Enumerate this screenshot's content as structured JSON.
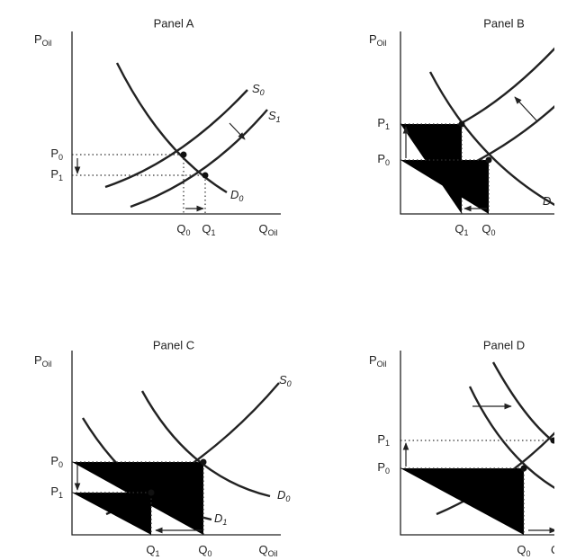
{
  "panels": [
    {
      "title": "Panel A",
      "labels": [
        {
          "main": "P",
          "sub": "Oil"
        },
        {
          "main": "P",
          "sub": "0"
        },
        {
          "main": "P",
          "sub": "1"
        },
        {
          "main": "Q",
          "sub": "0"
        },
        {
          "main": "Q",
          "sub": "1"
        },
        {
          "main": "Q",
          "sub": "Oil"
        },
        {
          "main": "S",
          "sub": "0"
        },
        {
          "main": "S",
          "sub": "1"
        },
        {
          "main": "D",
          "sub": "0"
        }
      ]
    },
    {
      "title": "Panel B",
      "labels": [
        {
          "main": "P",
          "sub": "Oil"
        },
        {
          "main": "P",
          "sub": "1"
        },
        {
          "main": "P",
          "sub": "0"
        },
        {
          "main": "Q",
          "sub": "1"
        },
        {
          "main": "Q",
          "sub": "0"
        },
        {
          "main": "D"
        }
      ]
    },
    {
      "title": "Panel C",
      "labels": [
        {
          "main": "P",
          "sub": "Oil"
        },
        {
          "main": "P",
          "sub": "0"
        },
        {
          "main": "P",
          "sub": "1"
        },
        {
          "main": "Q",
          "sub": "1"
        },
        {
          "main": "Q",
          "sub": "0"
        },
        {
          "main": "Q",
          "sub": "Oil"
        },
        {
          "main": "S",
          "sub": "0"
        },
        {
          "main": "D",
          "sub": "0"
        },
        {
          "main": "D",
          "sub": "1"
        }
      ]
    },
    {
      "title": "Panel D",
      "labels": [
        {
          "main": "P",
          "sub": "Oil"
        },
        {
          "main": "P",
          "sub": "1"
        },
        {
          "main": "P",
          "sub": "0"
        },
        {
          "main": "Q",
          "sub": "0"
        },
        {
          "main": "Q"
        }
      ]
    }
  ]
}
